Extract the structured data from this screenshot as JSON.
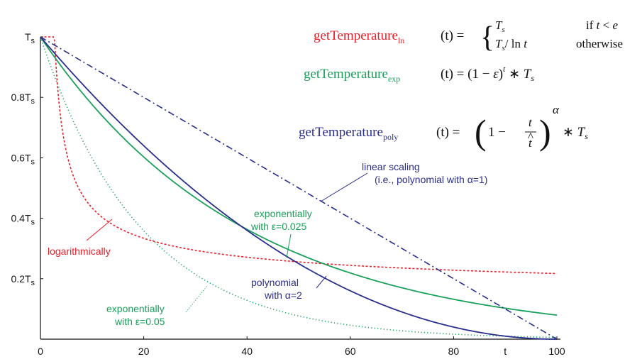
{
  "chart_data": {
    "type": "line",
    "xlim": [
      0,
      100
    ],
    "ylim": [
      0,
      1
    ],
    "x_ticks": [
      "0",
      "20",
      "40",
      "60",
      "80",
      "t",
      "100"
    ],
    "x_tick_values": [
      0,
      20,
      40,
      60,
      80,
      90,
      100
    ],
    "y_ticks": [
      {
        "value": 1.0,
        "base": "T",
        "sub": "s",
        "prefix": ""
      },
      {
        "value": 0.8,
        "base": "T",
        "sub": "s",
        "prefix": "0.8"
      },
      {
        "value": 0.6,
        "base": "T",
        "sub": "s",
        "prefix": "0.6"
      },
      {
        "value": 0.4,
        "base": "T",
        "sub": "s",
        "prefix": "0.4"
      },
      {
        "value": 0.2,
        "base": "T",
        "sub": "s",
        "prefix": "0.2"
      }
    ],
    "grid": false,
    "series": [
      {
        "key": "ln",
        "style": "dashed",
        "color": "#e8202a",
        "formula": "Ts / ln t for t >= e, Ts otherwise"
      },
      {
        "key": "exp05",
        "style": "dotted",
        "color": "#1aa05a",
        "epsilon": 0.05
      },
      {
        "key": "exp025",
        "style": "solid",
        "color": "#1aa05a",
        "epsilon": 0.025
      },
      {
        "key": "poly2",
        "style": "solid",
        "color": "#2a2e8c",
        "alpha": 2
      },
      {
        "key": "linear",
        "style": "dashdot",
        "color": "#2a2e8c",
        "alpha": 1
      }
    ],
    "annotations": {
      "linear": [
        "linear scaling",
        "(i.e., polynomial with α=1)"
      ],
      "exp025": [
        "exponentially",
        "with ε=0.025"
      ],
      "logarithmic": [
        "logarithmically"
      ],
      "poly2": [
        "polynomial",
        "with α=2"
      ],
      "exp05": [
        "exponentially",
        "with ε=0.05"
      ]
    },
    "equations": {
      "ln_name": "getTemperature",
      "ln_sub": "ln",
      "exp_name": "getTemperature",
      "exp_sub": "exp",
      "poly_name": "getTemperature",
      "poly_sub": "poly"
    }
  }
}
